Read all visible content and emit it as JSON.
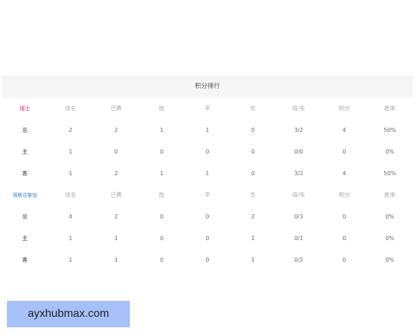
{
  "title": "积分排行",
  "columns": [
    "排名",
    "已赛",
    "胜",
    "平",
    "负",
    "得/失",
    "积分",
    "胜率"
  ],
  "teams": [
    {
      "name": "瑞士",
      "color": "#e0406a",
      "rows": [
        {
          "label": "总",
          "values": [
            "2",
            "2",
            "1",
            "1",
            "0",
            "3/2",
            "4",
            "50%"
          ]
        },
        {
          "label": "主",
          "values": [
            "1",
            "0",
            "0",
            "0",
            "0",
            "0/0",
            "0",
            "0%"
          ]
        },
        {
          "label": "客",
          "values": [
            "1",
            "2",
            "1",
            "1",
            "0",
            "3/2",
            "4",
            "50%"
          ]
        }
      ]
    },
    {
      "name": "哥斯达黎加",
      "color": "#3a7fd0",
      "rows": [
        {
          "label": "总",
          "values": [
            "4",
            "2",
            "0",
            "0",
            "2",
            "0/3",
            "0",
            "0%"
          ]
        },
        {
          "label": "主",
          "values": [
            "1",
            "1",
            "0",
            "0",
            "1",
            "0/1",
            "0",
            "0%"
          ]
        },
        {
          "label": "客",
          "values": [
            "1",
            "1",
            "0",
            "0",
            "1",
            "0/2",
            "0",
            "0%"
          ]
        }
      ]
    }
  ],
  "watermark": "ayxhubmax.com"
}
